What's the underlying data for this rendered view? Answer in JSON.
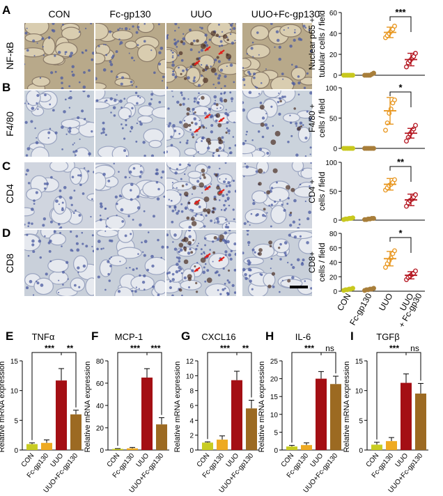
{
  "columns": [
    "CON",
    "Fc-gp130",
    "UUO",
    "UUO+Fc-gp130"
  ],
  "rows": [
    {
      "letter": "A",
      "stain": "NF-κB",
      "ylabel1": "Nuclear p65 +",
      "ylabel2": "tubular cells / field"
    },
    {
      "letter": "B",
      "stain": "F4/80",
      "ylabel1": "F4/80 +",
      "ylabel2": "cells / field"
    },
    {
      "letter": "C",
      "stain": "CD4",
      "ylabel1": "CD4 +",
      "ylabel2": "cells / field"
    },
    {
      "letter": "D",
      "stain": "CD8",
      "ylabel1": "CD8+",
      "ylabel2": "cells / field"
    }
  ],
  "scatter_xlabels": [
    "CON",
    "Fc-gp130",
    "UUO",
    "UUO + Fc-gp30"
  ],
  "bar_xlabels": [
    "CON",
    "Fc-gp130",
    "UUO",
    "UUO+Fc-gp130"
  ],
  "bar_ylabel": "Relative mRNA expression",
  "colors": {
    "con": "#c8c81e",
    "fc": "#a87e3a",
    "uuo_dot": "#e8961e",
    "treat_dot": "#b4141e",
    "bar_con": "#c8cc22",
    "bar_fc": "#eeaa22",
    "bar_uuo": "#a40f14",
    "bar_treat": "#9c6a22"
  },
  "chart_data": [
    {
      "type": "scatter",
      "panel": "A",
      "ylim": [
        0,
        60
      ],
      "yticks": [
        0,
        20,
        40,
        60
      ],
      "groups": [
        "CON",
        "Fc-gp130",
        "UUO",
        "UUO + Fc-gp30"
      ],
      "points": [
        [
          0,
          0,
          0,
          0,
          0,
          0
        ],
        [
          0,
          0,
          0,
          0,
          1,
          2
        ],
        [
          36,
          38,
          40,
          42,
          44,
          47
        ],
        [
          8,
          12,
          14,
          16,
          18,
          21
        ]
      ],
      "means": [
        0,
        0.5,
        41,
        15
      ],
      "sd": [
        0,
        0.5,
        5,
        6
      ],
      "annotations": [
        {
          "between": [
            2,
            3
          ],
          "text": "***"
        }
      ]
    },
    {
      "type": "scatter",
      "panel": "B",
      "ylim": [
        0,
        100
      ],
      "yticks": [
        0,
        50,
        100
      ],
      "groups": [
        "CON",
        "Fc-gp130",
        "UUO",
        "UUO + Fc-gp30"
      ],
      "points": [
        [
          0,
          0,
          0,
          0,
          0,
          0
        ],
        [
          0,
          0,
          0,
          0,
          0,
          0
        ],
        [
          30,
          42,
          58,
          65,
          75,
          80
        ],
        [
          12,
          18,
          24,
          28,
          32,
          38
        ]
      ],
      "means": [
        0,
        0,
        62,
        25
      ],
      "sd": [
        0,
        0,
        22,
        8
      ],
      "annotations": [
        {
          "between": [
            2,
            3
          ],
          "text": "*"
        }
      ]
    },
    {
      "type": "scatter",
      "panel": "C",
      "ylim": [
        0,
        100
      ],
      "yticks": [
        0,
        50,
        100
      ],
      "groups": [
        "CON",
        "Fc-gp130",
        "UUO",
        "UUO + Fc-gp30"
      ],
      "points": [
        [
          1,
          2,
          2,
          3,
          3,
          4
        ],
        [
          1,
          1,
          2,
          2,
          3,
          3
        ],
        [
          52,
          56,
          60,
          62,
          65,
          70
        ],
        [
          24,
          30,
          34,
          36,
          40,
          44
        ]
      ],
      "means": [
        2,
        2,
        62,
        35
      ],
      "sd": [
        1,
        1,
        10,
        10
      ],
      "annotations": [
        {
          "between": [
            2,
            3
          ],
          "text": "**"
        }
      ]
    },
    {
      "type": "scatter",
      "panel": "D",
      "ylim": [
        0,
        80
      ],
      "yticks": [
        0,
        20,
        40,
        60,
        80
      ],
      "groups": [
        "CON",
        "Fc-gp130",
        "UUO",
        "UUO + Fc-gp30"
      ],
      "points": [
        [
          1,
          2,
          2,
          3,
          3,
          4
        ],
        [
          1,
          2,
          2,
          3,
          3,
          4
        ],
        [
          33,
          38,
          42,
          46,
          52,
          56
        ],
        [
          16,
          19,
          21,
          23,
          25,
          28
        ]
      ],
      "means": [
        2,
        2,
        45,
        22
      ],
      "sd": [
        1,
        1,
        10,
        5
      ],
      "annotations": [
        {
          "between": [
            2,
            3
          ],
          "text": "*"
        }
      ]
    },
    {
      "type": "bar",
      "panel": "E",
      "title": "TNFα",
      "ylim": [
        0,
        15
      ],
      "yticks": [
        0,
        5,
        10,
        15
      ],
      "categories": [
        "CON",
        "Fc-gp130",
        "UUO",
        "UUO+Fc-gp130"
      ],
      "values": [
        1,
        1.2,
        11.7,
        6
      ],
      "errors": [
        0.2,
        0.5,
        2,
        0.7
      ],
      "annotations": [
        {
          "from": 0,
          "to": 2,
          "text": "***"
        },
        {
          "from": 2,
          "to": 3,
          "text": "**"
        }
      ]
    },
    {
      "type": "bar",
      "panel": "F",
      "title": "MCP-1",
      "ylim": [
        0,
        80
      ],
      "yticks": [
        0,
        20,
        40,
        60,
        80
      ],
      "categories": [
        "CON",
        "Fc-gp130",
        "UUO",
        "UUO+Fc-gp130"
      ],
      "values": [
        1,
        1.5,
        65,
        23
      ],
      "errors": [
        0.3,
        0.8,
        8,
        6
      ],
      "annotations": [
        {
          "from": 0,
          "to": 2,
          "text": "***"
        },
        {
          "from": 2,
          "to": 3,
          "text": "***"
        }
      ]
    },
    {
      "type": "bar",
      "panel": "G",
      "title": "CXCL16",
      "ylim": [
        0,
        12
      ],
      "yticks": [
        0,
        2,
        4,
        6,
        8,
        10,
        12
      ],
      "categories": [
        "CON",
        "Fc-gp130",
        "UUO",
        "UUO+Fc-gp130"
      ],
      "values": [
        1,
        1.4,
        9.4,
        5.6
      ],
      "errors": [
        0.1,
        0.5,
        1.2,
        1.1
      ],
      "annotations": [
        {
          "from": 0,
          "to": 2,
          "text": "***"
        },
        {
          "from": 2,
          "to": 3,
          "text": "**"
        }
      ]
    },
    {
      "type": "bar",
      "panel": "H",
      "title": "IL-6",
      "ylim": [
        0,
        25
      ],
      "yticks": [
        0,
        5,
        10,
        15,
        20,
        25
      ],
      "categories": [
        "CON",
        "Fc-gp130",
        "UUO",
        "UUO+Fc-gp130"
      ],
      "values": [
        1,
        1.4,
        20,
        18.5
      ],
      "errors": [
        0.3,
        0.6,
        2,
        2.2
      ],
      "annotations": [
        {
          "from": 0,
          "to": 2,
          "text": "***"
        },
        {
          "from": 2,
          "to": 3,
          "text": "ns"
        }
      ]
    },
    {
      "type": "bar",
      "panel": "I",
      "title": "TGFβ",
      "ylim": [
        0,
        15
      ],
      "yticks": [
        0,
        5,
        10,
        15
      ],
      "categories": [
        "CON",
        "Fc-gp130",
        "UUO",
        "UUO+Fc-gp130"
      ],
      "values": [
        0.9,
        1.5,
        11.3,
        9.5
      ],
      "errors": [
        0.4,
        0.6,
        1.5,
        1.7
      ],
      "annotations": [
        {
          "from": 0,
          "to": 2,
          "text": "***"
        },
        {
          "from": 2,
          "to": 3,
          "text": "ns"
        }
      ]
    }
  ]
}
